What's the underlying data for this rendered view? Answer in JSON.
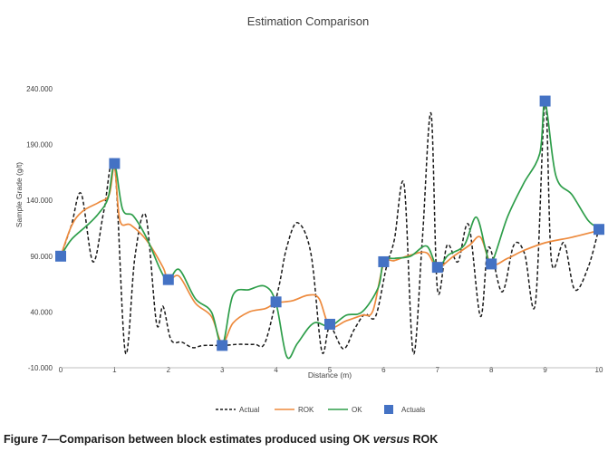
{
  "caption": {
    "prefix": "Figure 7—Comparison between block estimates produced using OK ",
    "emphasis": "versus",
    "suffix": " ROK"
  },
  "chart_data": {
    "type": "line",
    "title": "Estimation Comparison",
    "xlabel": "Distance (m)",
    "ylabel": "Sample Grade (g/t)",
    "xlim": [
      0,
      10
    ],
    "ylim": [
      -10,
      240
    ],
    "x_ticks": [
      "0",
      "1",
      "2",
      "3",
      "4",
      "5",
      "6",
      "7",
      "8",
      "9",
      "10"
    ],
    "y_ticks": [
      "-10.000",
      "40.000",
      "90.000",
      "140.000",
      "190.000",
      "240.000"
    ],
    "y_tick_values": [
      -10,
      40,
      90,
      140,
      190,
      240
    ],
    "grid": false,
    "legend": "bottom",
    "series": [
      {
        "name": "Actual",
        "style": "dashed",
        "color": "#1a1a1a",
        "x": [
          0,
          0.2,
          0.38,
          0.6,
          0.8,
          1.0,
          1.2,
          1.38,
          1.58,
          1.78,
          1.9,
          2.05,
          2.25,
          2.45,
          2.65,
          3.0,
          3.3,
          3.6,
          3.8,
          4.05,
          4.2,
          4.4,
          4.65,
          4.85,
          5.0,
          5.25,
          5.45,
          5.65,
          5.85,
          6.05,
          6.2,
          6.38,
          6.55,
          6.72,
          6.88,
          7.0,
          7.18,
          7.38,
          7.58,
          7.8,
          7.95,
          8.2,
          8.42,
          8.62,
          8.82,
          9.0,
          9.12,
          9.35,
          9.55,
          9.8,
          10.0
        ],
        "y": [
          90,
          118,
          146,
          85,
          130,
          172,
          4,
          90,
          126,
          30,
          45,
          15,
          13,
          8,
          10,
          10,
          11,
          11,
          13,
          62,
          98,
          120,
          92,
          5,
          27,
          7,
          24,
          38,
          36,
          80,
          105,
          154,
          3,
          106,
          218,
          60,
          100,
          85,
          118,
          36,
          98,
          58,
          100,
          92,
          48,
          228,
          85,
          102,
          60,
          80,
          115
        ]
      },
      {
        "name": "ROK",
        "style": "solid",
        "color": "#ed8a3d",
        "x": [
          0,
          0.2,
          0.4,
          0.7,
          0.9,
          1.0,
          1.1,
          1.3,
          1.6,
          1.9,
          2.0,
          2.2,
          2.5,
          2.8,
          3.0,
          3.2,
          3.5,
          3.8,
          4.0,
          4.3,
          4.6,
          4.8,
          5.0,
          5.3,
          5.6,
          5.8,
          6.0,
          6.2,
          6.5,
          6.8,
          7.0,
          7.3,
          7.6,
          7.8,
          8.0,
          8.3,
          8.6,
          9.0,
          9.5,
          10.0
        ],
        "y": [
          90,
          117,
          130,
          138,
          145,
          170,
          122,
          118,
          104,
          80,
          68,
          72,
          48,
          36,
          12,
          30,
          40,
          43,
          48,
          50,
          55,
          52,
          27,
          32,
          37,
          41,
          83,
          86,
          91,
          93,
          80,
          90,
          100,
          107,
          83,
          88,
          95,
          102,
          107,
          113
        ]
      },
      {
        "name": "OK",
        "style": "solid",
        "color": "#2e9e4a",
        "x": [
          0,
          0.2,
          0.5,
          0.7,
          0.88,
          1.0,
          1.15,
          1.35,
          1.6,
          1.85,
          2.0,
          2.2,
          2.5,
          2.8,
          3.0,
          3.2,
          3.5,
          3.8,
          4.0,
          4.2,
          4.4,
          4.7,
          5.0,
          5.3,
          5.6,
          5.9,
          6.0,
          6.2,
          6.5,
          6.8,
          7.0,
          7.2,
          7.5,
          7.72,
          7.9,
          8.0,
          8.3,
          8.6,
          8.9,
          9.0,
          9.2,
          9.5,
          9.8,
          10.0
        ],
        "y": [
          90,
          105,
          118,
          128,
          142,
          172,
          132,
          126,
          106,
          78,
          68,
          78,
          52,
          40,
          10,
          55,
          60,
          63,
          48,
          0,
          12,
          30,
          27,
          37,
          40,
          62,
          86,
          88,
          90,
          99,
          80,
          91,
          100,
          125,
          95,
          83,
          125,
          155,
          182,
          228,
          162,
          145,
          122,
          115
        ]
      },
      {
        "name": "Actuals",
        "style": "markers",
        "color": "#4472c4",
        "x": [
          0,
          1,
          2,
          3,
          4,
          5,
          6,
          7,
          8,
          9,
          10
        ],
        "y": [
          90,
          173,
          69,
          10,
          49,
          29,
          85,
          80,
          83,
          229,
          114
        ]
      }
    ]
  }
}
